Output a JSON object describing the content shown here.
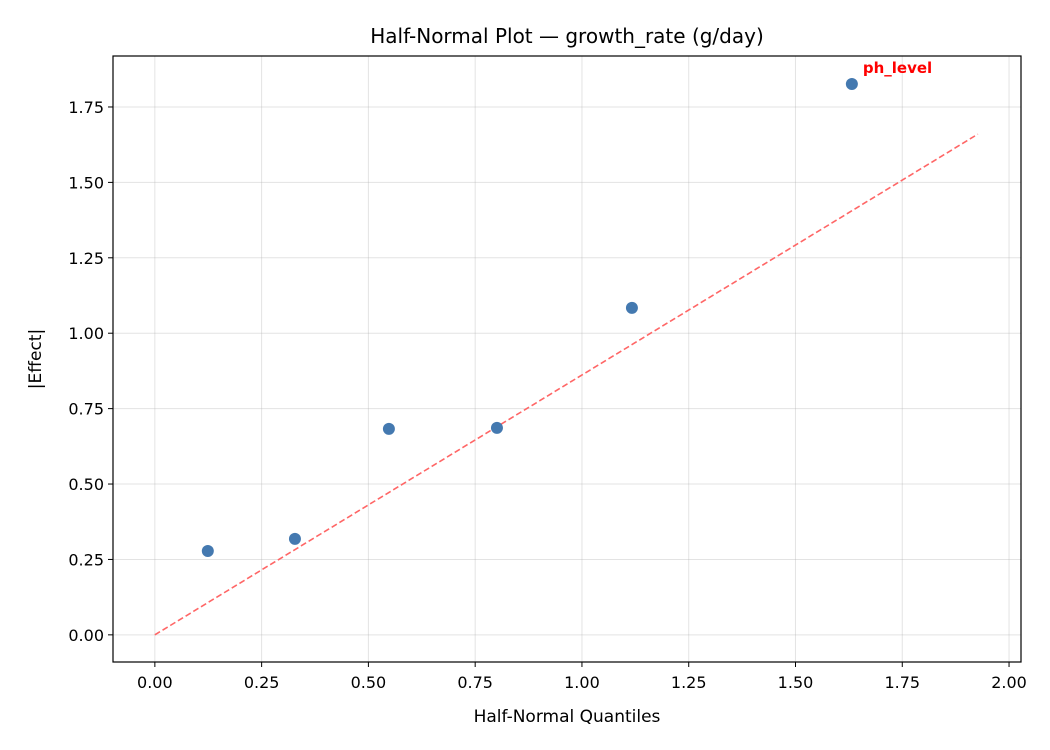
{
  "chart_data": {
    "type": "scatter",
    "title": "Half-Normal Plot — growth_rate (g/day)",
    "xlabel": "Half-Normal Quantiles",
    "ylabel": "|Effect|",
    "xlim": [
      -0.098,
      2.028
    ],
    "ylim": [
      -0.09,
      1.919
    ],
    "xticks": [
      0.0,
      0.25,
      0.5,
      0.75,
      1.0,
      1.25,
      1.5,
      1.75,
      2.0
    ],
    "xtick_labels": [
      "0.00",
      "0.25",
      "0.50",
      "0.75",
      "1.00",
      "1.25",
      "1.50",
      "1.75",
      "2.00"
    ],
    "yticks": [
      0.0,
      0.25,
      0.5,
      0.75,
      1.0,
      1.25,
      1.5,
      1.75
    ],
    "ytick_labels": [
      "0.00",
      "0.25",
      "0.50",
      "0.75",
      "1.00",
      "1.25",
      "1.50",
      "1.75"
    ],
    "grid": true,
    "points": {
      "x": [
        0.124,
        0.328,
        0.548,
        0.801,
        1.117,
        1.632
      ],
      "y": [
        0.278,
        0.318,
        0.683,
        0.686,
        1.084,
        1.826
      ],
      "color": "#4479b0"
    },
    "reference_line": {
      "x": [
        0.0,
        1.927
      ],
      "y": [
        0.0,
        1.66
      ],
      "color": "#ff6666",
      "style": "dashed"
    },
    "annotations": [
      {
        "text": "ph_level",
        "x": 1.632,
        "y": 1.826,
        "color": "#ff0000"
      }
    ]
  }
}
